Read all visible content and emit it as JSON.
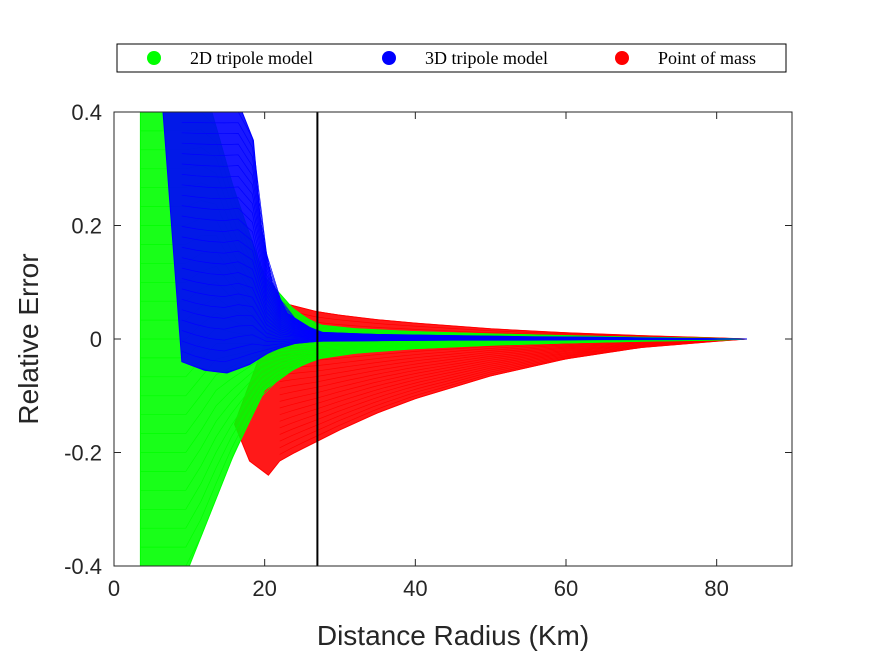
{
  "chart_data": {
    "type": "line",
    "title": "",
    "xlabel": "Distance Radius (Km)",
    "ylabel": "Relative Error",
    "xlim": [
      0,
      90
    ],
    "ylim": [
      -0.4,
      0.4
    ],
    "xticks": [
      0,
      20,
      40,
      60,
      80
    ],
    "xtick_labels": [
      "0",
      "20",
      "40",
      "60",
      "80"
    ],
    "yticks": [
      -0.4,
      -0.2,
      0,
      0.2,
      0.4
    ],
    "ytick_labels": [
      "-0.4",
      "-0.2",
      "0",
      "0.2",
      "0.4"
    ],
    "grid": false,
    "legend_position": "top, outside plot, horizontal",
    "reference_line": {
      "x": 27,
      "color": "#000000"
    },
    "series": [
      {
        "name": "2D tripole model",
        "color": "#00ff00",
        "upper_envelope": {
          "x": [
            3.5,
            5,
            7,
            10,
            13,
            16,
            20,
            24,
            27,
            32,
            40,
            50,
            60,
            70,
            80,
            84
          ],
          "y": [
            0.4,
            0.4,
            0.4,
            0.4,
            0.4,
            0.26,
            0.11,
            0.05,
            0.025,
            0.018,
            0.013,
            0.009,
            0.006,
            0.003,
            0.001,
            0.0
          ]
        },
        "lower_envelope": {
          "x": [
            3.5,
            6,
            10,
            13,
            16,
            20,
            24,
            27,
            32,
            40,
            50,
            60,
            70,
            80,
            84
          ],
          "y": [
            -0.4,
            -0.4,
            -0.4,
            -0.3,
            -0.2,
            -0.09,
            -0.052,
            -0.035,
            -0.025,
            -0.017,
            -0.011,
            -0.007,
            -0.004,
            -0.002,
            0.0
          ]
        }
      },
      {
        "name": "3D tripole model",
        "color": "#0000ff",
        "upper_envelope": {
          "x": [
            6.5,
            8,
            10,
            14,
            17,
            18.5,
            19.5,
            21,
            23,
            27,
            35,
            45,
            55,
            65,
            75,
            84
          ],
          "y": [
            0.4,
            0.4,
            0.4,
            0.4,
            0.4,
            0.35,
            0.2,
            0.1,
            0.045,
            0.012,
            0.008,
            0.006,
            0.004,
            0.003,
            0.001,
            0.0
          ]
        },
        "lower_envelope": {
          "x": [
            9,
            12,
            15,
            18,
            21,
            24,
            27,
            35,
            45,
            55,
            65,
            75,
            84
          ],
          "y": [
            -0.04,
            -0.055,
            -0.06,
            -0.045,
            -0.02,
            -0.008,
            -0.004,
            -0.003,
            -0.002,
            -0.002,
            -0.001,
            -0.001,
            0.0
          ]
        }
      },
      {
        "name": "Point of mass",
        "color": "#ff0000",
        "upper_envelope": {
          "x": [
            22,
            24,
            27,
            30,
            35,
            40,
            50,
            60,
            70,
            80,
            84
          ],
          "y": [
            0.065,
            0.058,
            0.048,
            0.042,
            0.034,
            0.028,
            0.018,
            0.011,
            0.006,
            0.002,
            0.0
          ]
        },
        "lower_envelope": {
          "x": [
            16,
            18,
            20.5,
            22,
            24,
            27,
            30,
            35,
            40,
            50,
            60,
            70,
            80,
            84
          ],
          "y": [
            -0.15,
            -0.215,
            -0.24,
            -0.215,
            -0.2,
            -0.18,
            -0.16,
            -0.13,
            -0.105,
            -0.065,
            -0.035,
            -0.015,
            -0.004,
            0.0
          ]
        }
      }
    ]
  }
}
